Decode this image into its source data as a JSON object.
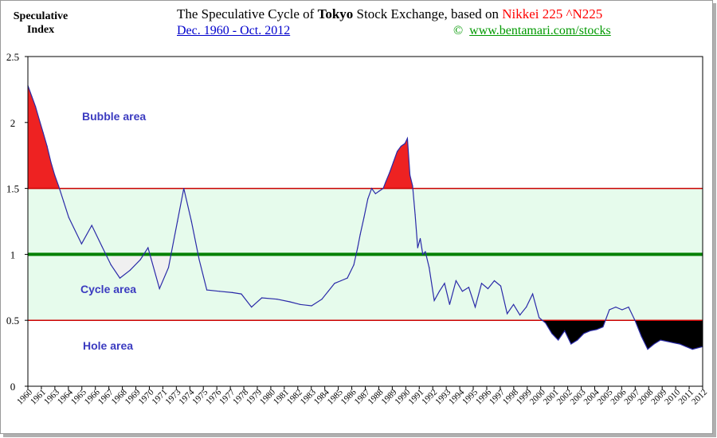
{
  "header": {
    "y_title_line1": "Speculative",
    "y_title_line2": "Index",
    "title_prefix": "The Speculative Cycle of ",
    "title_bold": "Tokyo",
    "title_suffix": " Stock Exchange,  based on ",
    "title_highlight": "Nikkei  225 ^N225",
    "subtitle": "Dec. 1960 - Oct. 2012 ",
    "copyright_symbol": "©",
    "website": "www.bentamari.com/stocks"
  },
  "colors": {
    "bubble_fill": "#ee2222",
    "hole_fill": "#000000",
    "cycle_band": "#e6fbec",
    "cycle_gap": "#f0f0f0",
    "threshold_line": "#cc0000",
    "center_line": "#008000",
    "series_line": "#2a2aa8",
    "area_label": "#3b3bc0"
  },
  "chart_data": {
    "type": "area",
    "ylim": [
      0,
      2.5
    ],
    "yticks": [
      "0",
      "0.5",
      "1",
      "1.5",
      "2",
      "2.5"
    ],
    "xlim": [
      1960,
      2012.8
    ],
    "xticks": [
      "1960",
      "1961",
      "1963",
      "1964",
      "1965",
      "1966",
      "1967",
      "1968",
      "1969",
      "1970",
      "1971",
      "1973",
      "1974",
      "1975",
      "1976",
      "1977",
      "1978",
      "1979",
      "1980",
      "1981",
      "1982",
      "1983",
      "1984",
      "1985",
      "1986",
      "1987",
      "1988",
      "1989",
      "1990",
      "1991",
      "1992",
      "1993",
      "1994",
      "1995",
      "1996",
      "1997",
      "1998",
      "1999",
      "2000",
      "2001",
      "2002",
      "2003",
      "2004",
      "2005",
      "2006",
      "2007",
      "2008",
      "2009",
      "2010",
      "2011",
      "2012"
    ],
    "thresholds": {
      "bubble_upper": 1.5,
      "center": 1.0,
      "hole_lower": 0.5
    },
    "area_labels": {
      "bubble": "Bubble area",
      "cycle": "Cycle area",
      "hole": "Hole area"
    },
    "series": [
      {
        "x": [
          1960.0,
          1960.3,
          1960.6,
          1960.9,
          1961.2,
          1961.5,
          1961.8,
          1962.1,
          1962.4,
          1962.8,
          1963.2,
          1964.2,
          1965.0,
          1965.8,
          1966.5,
          1967.2,
          1968.0,
          1968.8,
          1969.4,
          1970.3,
          1971.0,
          1971.7,
          1972.2,
          1972.8,
          1973.4,
          1974.0,
          1975.0,
          1976.0,
          1976.7,
          1977.5,
          1978.3,
          1979.5,
          1980.5,
          1981.3,
          1982.2,
          1983.0,
          1983.5,
          1984.0,
          1984.5,
          1985.0,
          1985.5,
          1985.8,
          1986.0,
          1986.3,
          1986.6,
          1986.9,
          1987.2,
          1987.5,
          1987.8,
          1988.0,
          1988.3,
          1988.6,
          1988.9,
          1989.2,
          1989.5,
          1989.7,
          1989.9,
          1990.1,
          1990.3,
          1990.5,
          1990.7,
          1990.9,
          1991.1,
          1991.4,
          1991.8,
          1992.2,
          1992.6,
          1993.0,
          1993.5,
          1994.0,
          1994.5,
          1995.0,
          1995.5,
          1996.0,
          1996.5,
          1997.0,
          1997.5,
          1998.0,
          1998.5,
          1999.0,
          1999.5,
          2000.0,
          2000.5,
          2001.0,
          2001.5,
          2002.0,
          2002.5,
          2003.0,
          2003.5,
          2004.0,
          2004.5,
          2005.0,
          2005.5,
          2006.0,
          2006.5,
          2007.0,
          2007.5,
          2008.0,
          2008.5,
          2009.0,
          2009.5,
          2010.0,
          2010.5,
          2011.0,
          2011.5,
          2012.0,
          2012.8
        ],
        "values": [
          2.28,
          2.2,
          2.12,
          2.02,
          1.92,
          1.82,
          1.7,
          1.6,
          1.52,
          1.4,
          1.28,
          1.08,
          1.22,
          1.06,
          0.92,
          0.82,
          0.88,
          0.96,
          1.05,
          0.74,
          0.9,
          1.25,
          1.5,
          1.25,
          0.96,
          0.73,
          0.72,
          0.71,
          0.7,
          0.6,
          0.67,
          0.66,
          0.64,
          0.62,
          0.61,
          0.66,
          0.72,
          0.78,
          0.8,
          0.82,
          0.92,
          1.05,
          1.15,
          1.28,
          1.42,
          1.5,
          1.46,
          1.48,
          1.5,
          1.55,
          1.62,
          1.7,
          1.78,
          1.82,
          1.84,
          1.88,
          1.6,
          1.52,
          1.3,
          1.05,
          1.12,
          1.0,
          1.02,
          0.9,
          0.65,
          0.72,
          0.78,
          0.62,
          0.8,
          0.72,
          0.75,
          0.6,
          0.78,
          0.74,
          0.8,
          0.76,
          0.55,
          0.62,
          0.54,
          0.6,
          0.7,
          0.52,
          0.48,
          0.4,
          0.35,
          0.42,
          0.32,
          0.35,
          0.4,
          0.42,
          0.43,
          0.45,
          0.58,
          0.6,
          0.58,
          0.6,
          0.5,
          0.38,
          0.28,
          0.32,
          0.35,
          0.34,
          0.33,
          0.32,
          0.3,
          0.28,
          0.3
        ]
      }
    ]
  }
}
